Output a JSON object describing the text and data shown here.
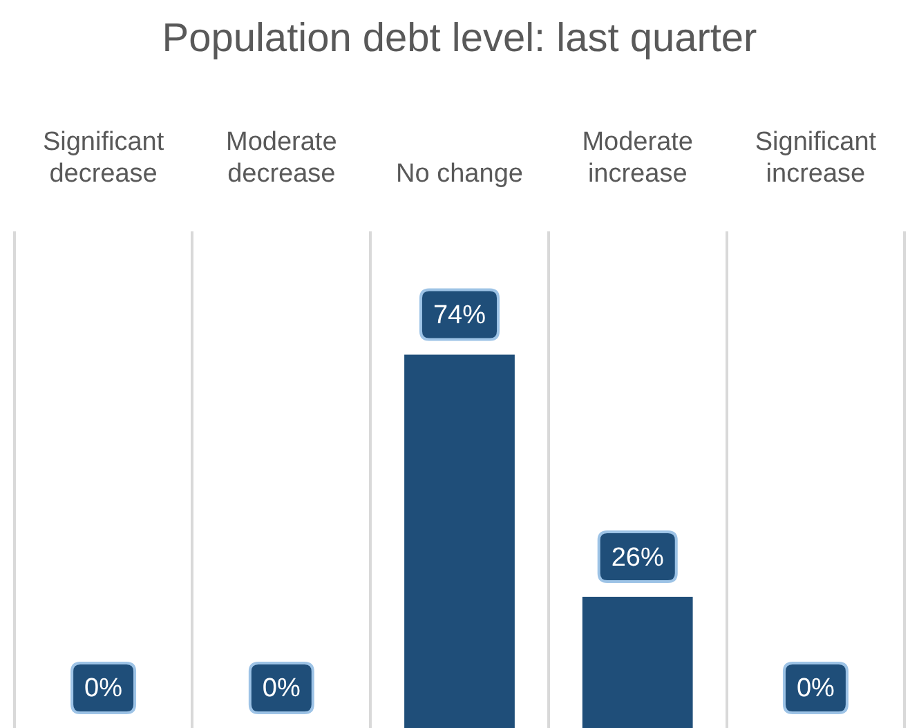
{
  "chart_data": {
    "type": "bar",
    "title": "Population debt level: last quarter",
    "categories": [
      "Significant decrease",
      "Moderate decrease",
      "No change",
      "Moderate increase",
      "Significant increase"
    ],
    "values": [
      0,
      0,
      74,
      26,
      0
    ],
    "value_labels": [
      "0%",
      "0%",
      "74%",
      "26%",
      "0%"
    ],
    "color": "#1f4e79",
    "grid": "x",
    "tick_labels": "x",
    "legend": false
  }
}
